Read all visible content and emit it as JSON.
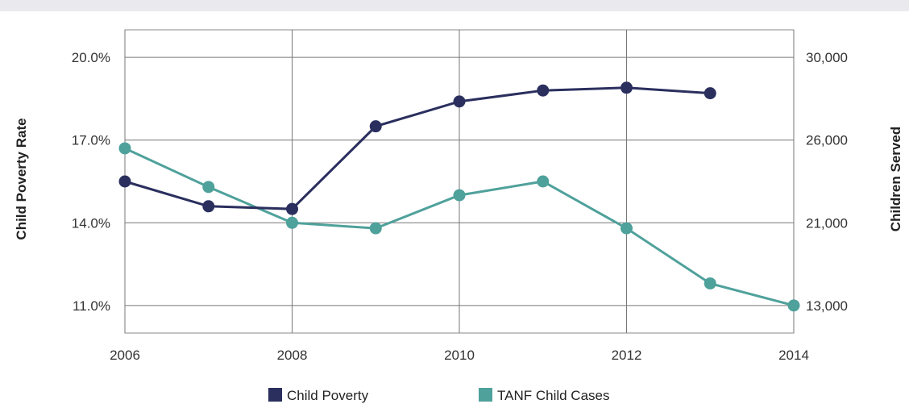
{
  "chart_data": {
    "type": "line",
    "x_ticks": [
      "2006",
      "2008",
      "2010",
      "2012",
      "2014"
    ],
    "xlim": [
      2006,
      2014
    ],
    "y_left": {
      "label": "Child Poverty Rate",
      "ticks": [
        "20.0%",
        "17.0%",
        "14.0%",
        "11.0%"
      ],
      "tick_values": [
        20.0,
        17.0,
        14.0,
        11.0
      ],
      "range": [
        10.0,
        21.0
      ]
    },
    "y_right": {
      "label": "Children Served",
      "ticks": [
        "30,000",
        "26,000",
        "21,000",
        "13,000"
      ]
    },
    "series": [
      {
        "name": "Child Poverty",
        "color": "#2a2f5e",
        "axis": "left",
        "points": [
          [
            2006,
            15.5
          ],
          [
            2007,
            14.6
          ],
          [
            2008,
            14.5
          ],
          [
            2009,
            17.5
          ],
          [
            2010,
            18.4
          ],
          [
            2011,
            18.8
          ],
          [
            2012,
            18.9
          ],
          [
            2013,
            18.7
          ]
        ]
      },
      {
        "name": "TANF Child Cases",
        "color": "#4fa19b",
        "axis": "left",
        "points": [
          [
            2006,
            16.7
          ],
          [
            2007,
            15.3
          ],
          [
            2008,
            14.0
          ],
          [
            2009,
            13.8
          ],
          [
            2010,
            15.0
          ],
          [
            2011,
            15.5
          ],
          [
            2012,
            13.8
          ],
          [
            2013,
            11.8
          ],
          [
            2014,
            11.0
          ]
        ]
      }
    ],
    "grid": true,
    "legend_position": "bottom"
  }
}
